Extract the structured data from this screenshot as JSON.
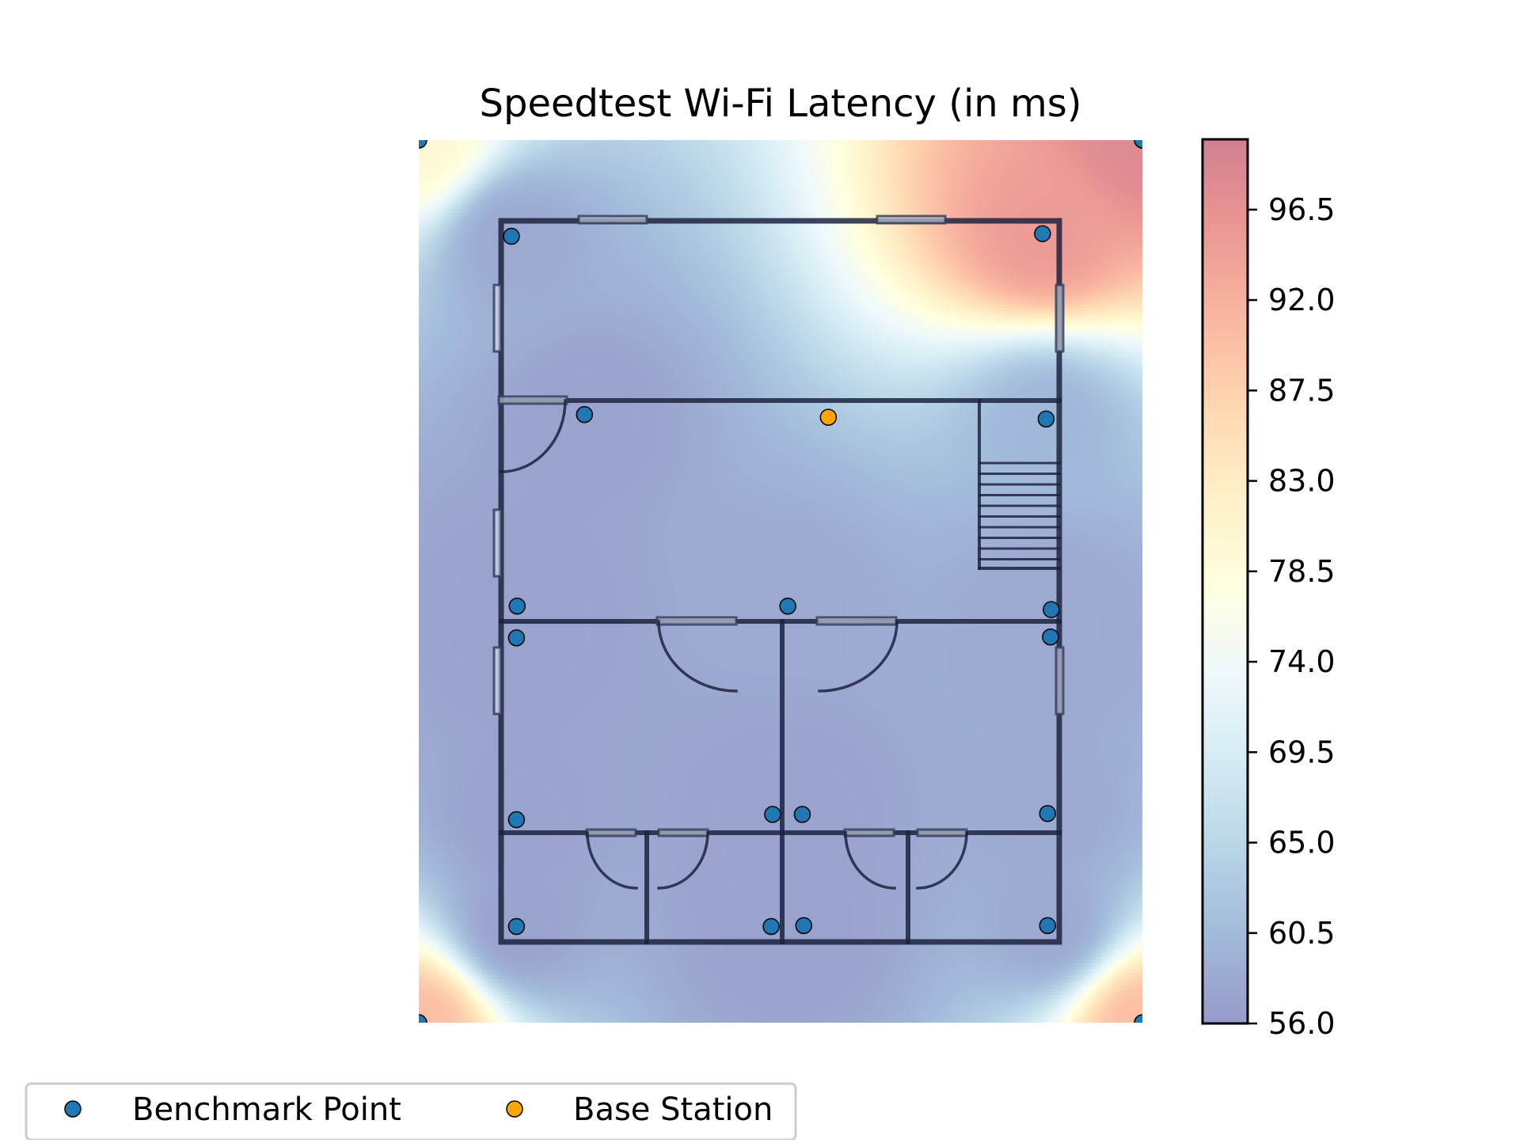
{
  "chart_data": {
    "type": "heatmap",
    "title": "Speedtest Wi-Fi Latency (in ms)",
    "xlabel": "",
    "ylabel": "",
    "units": "ms",
    "grid": false,
    "colorbar": {
      "min": 56.0,
      "max": 100.0,
      "ticks": [
        56.0,
        60.5,
        65.0,
        69.5,
        74.0,
        78.5,
        83.0,
        87.5,
        92.0,
        96.5
      ],
      "tick_labels": [
        "56.0",
        "60.5",
        "65.0",
        "69.5",
        "74.0",
        "78.5",
        "83.0",
        "87.5",
        "92.0",
        "96.5"
      ],
      "colormap": [
        "#313695",
        "#4575b4",
        "#74add1",
        "#abd9e9",
        "#e0f3f8",
        "#ffffbf",
        "#fee090",
        "#fdae61",
        "#f46d43",
        "#d73027",
        "#a50026"
      ],
      "alpha": 0.5
    },
    "legend": {
      "placement": "bottom-left",
      "entries": [
        {
          "label": "Benchmark Point",
          "color": "#1f77b4"
        },
        {
          "label": "Base Station",
          "color": "#ffa500"
        }
      ]
    },
    "benchmark_points": [
      {
        "x": 0.128,
        "y": 0.891,
        "latency": 58
      },
      {
        "x": 0.862,
        "y": 0.894,
        "latency": 95
      },
      {
        "x": 0.229,
        "y": 0.689,
        "latency": 57
      },
      {
        "x": 0.867,
        "y": 0.684,
        "latency": 60
      },
      {
        "x": 0.136,
        "y": 0.472,
        "latency": 57
      },
      {
        "x": 0.51,
        "y": 0.472,
        "latency": 58
      },
      {
        "x": 0.874,
        "y": 0.468,
        "latency": 58
      },
      {
        "x": 0.135,
        "y": 0.436,
        "latency": 57
      },
      {
        "x": 0.873,
        "y": 0.437,
        "latency": 58
      },
      {
        "x": 0.135,
        "y": 0.23,
        "latency": 57
      },
      {
        "x": 0.489,
        "y": 0.236,
        "latency": 57
      },
      {
        "x": 0.53,
        "y": 0.236,
        "latency": 57
      },
      {
        "x": 0.869,
        "y": 0.237,
        "latency": 58
      },
      {
        "x": 0.135,
        "y": 0.109,
        "latency": 57
      },
      {
        "x": 0.487,
        "y": 0.109,
        "latency": 57
      },
      {
        "x": 0.532,
        "y": 0.11,
        "latency": 57
      },
      {
        "x": 0.869,
        "y": 0.11,
        "latency": 58
      },
      {
        "x": 0.0,
        "y": 1.0,
        "latency": 80
      },
      {
        "x": 1.0,
        "y": 1.0,
        "latency": 98
      },
      {
        "x": 0.0,
        "y": 0.0,
        "latency": 90
      },
      {
        "x": 1.0,
        "y": 0.0,
        "latency": 90
      }
    ],
    "base_station": {
      "x": 0.566,
      "y": 0.686
    }
  }
}
